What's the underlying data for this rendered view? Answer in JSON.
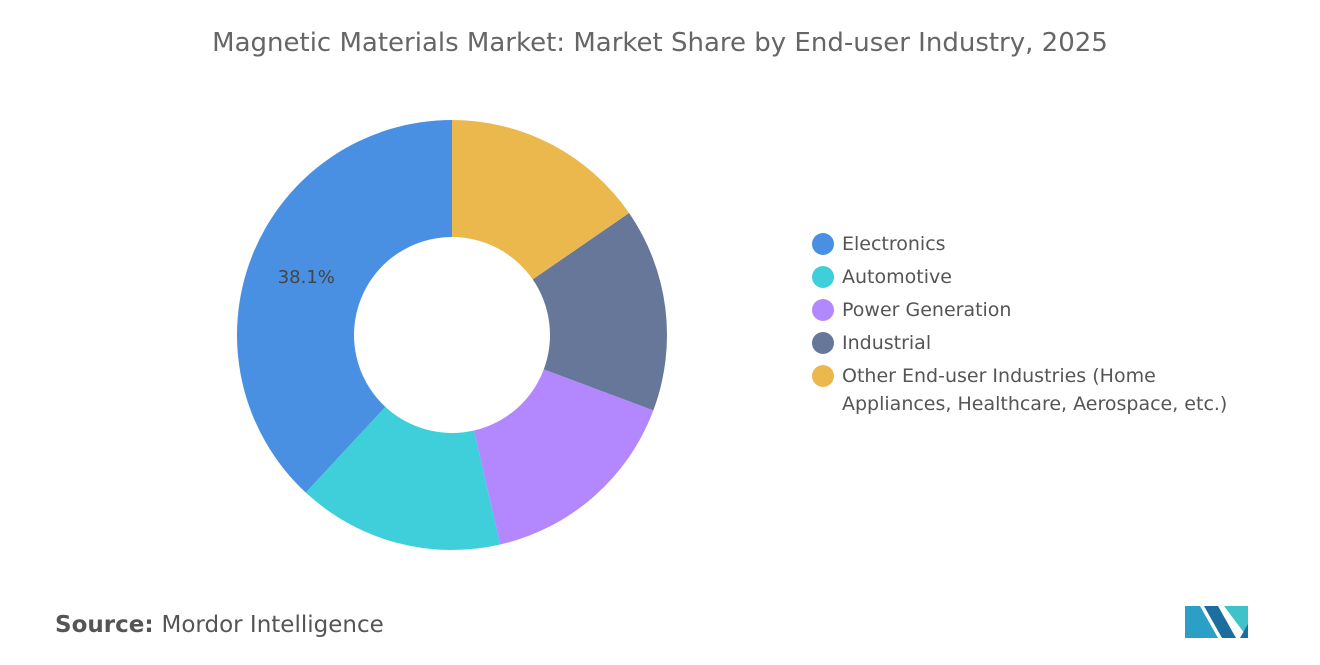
{
  "chart_data": {
    "type": "donut",
    "title": "Magnetic Materials Market: Market Share by End-user Industry, 2025",
    "categories": [
      "Electronics",
      "Automotive",
      "Power Generation",
      "Industrial",
      "Other End-user Industries (Home Appliances, Healthcare, Aerospace, etc.)"
    ],
    "values": [
      38.1,
      15.5,
      15.7,
      15.3,
      15.4
    ],
    "value_labels": [
      "38.1%",
      null,
      null,
      null,
      null
    ],
    "colors": [
      "#4a90e2",
      "#3ecfda",
      "#b388ff",
      "#667799",
      "#ebb84d"
    ],
    "source_label": "Source:",
    "source": "Mordor Intelligence"
  }
}
